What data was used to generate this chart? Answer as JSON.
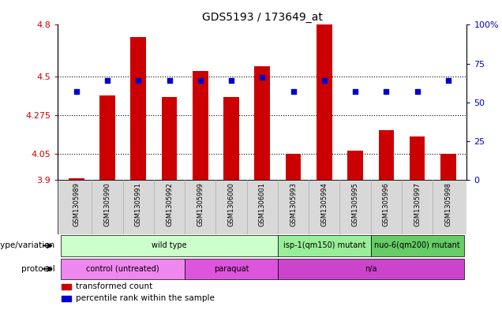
{
  "title": "GDS5193 / 173649_at",
  "samples": [
    "GSM1305989",
    "GSM1305990",
    "GSM1305991",
    "GSM1305992",
    "GSM1305999",
    "GSM1306000",
    "GSM1306001",
    "GSM1305993",
    "GSM1305994",
    "GSM1305995",
    "GSM1305996",
    "GSM1305997",
    "GSM1305998"
  ],
  "bar_values": [
    3.91,
    4.39,
    4.73,
    4.38,
    4.53,
    4.38,
    4.56,
    4.05,
    4.8,
    4.07,
    4.19,
    4.15,
    4.05
  ],
  "bar_base": 3.9,
  "dot_percentiles": [
    57,
    64,
    64,
    64,
    64,
    64,
    66,
    57,
    64,
    57,
    57,
    57,
    64
  ],
  "ylim_left": [
    3.9,
    4.8
  ],
  "yticks_left": [
    3.9,
    4.05,
    4.275,
    4.5,
    4.8
  ],
  "ytick_labels_left": [
    "3.9",
    "4.05",
    "4.275",
    "4.5",
    "4.8"
  ],
  "ylim_right": [
    0,
    100
  ],
  "yticks_right": [
    0,
    25,
    50,
    75,
    100
  ],
  "ytick_labels_right": [
    "0",
    "25",
    "50",
    "75",
    "100%"
  ],
  "bar_color": "#cc0000",
  "dot_color": "#0000cc",
  "bar_width": 0.5,
  "genotype_groups": [
    {
      "label": "wild type",
      "start": 0,
      "end": 6,
      "color": "#ccffcc"
    },
    {
      "label": "isp-1(qm150) mutant",
      "start": 7,
      "end": 9,
      "color": "#99ee99"
    },
    {
      "label": "nuo-6(qm200) mutant",
      "start": 10,
      "end": 12,
      "color": "#66cc66"
    }
  ],
  "protocol_groups": [
    {
      "label": "control (untreated)",
      "start": 0,
      "end": 3,
      "color": "#ee88ee"
    },
    {
      "label": "paraquat",
      "start": 4,
      "end": 6,
      "color": "#dd55dd"
    },
    {
      "label": "n/a",
      "start": 7,
      "end": 12,
      "color": "#cc44cc"
    }
  ],
  "legend_items": [
    {
      "label": "transformed count",
      "color": "#cc0000"
    },
    {
      "label": "percentile rank within the sample",
      "color": "#0000cc"
    }
  ],
  "left_label_color": "#cc0000",
  "right_label_color": "#0000cc",
  "tick_bg_color": "#d8d8d8",
  "sample_divider_color": "#aaaaaa",
  "border_color": "#000000"
}
